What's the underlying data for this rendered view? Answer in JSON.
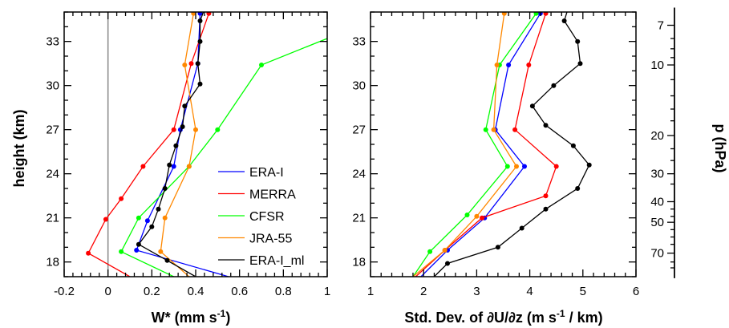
{
  "chart_data": [
    {
      "type": "line",
      "panel": "left",
      "xlabel": "W* (mm s",
      "xlabel_sup": "-1",
      "xlabel_end": ")",
      "ylabel": "height (km)",
      "xlim": [
        -0.2,
        1.0
      ],
      "ylim": [
        17,
        35
      ],
      "x_ticks": [
        "-0.2",
        "0",
        "0.2",
        "0.4",
        "0.6",
        "0.8",
        "1"
      ],
      "x_tick_values": [
        -0.2,
        0,
        0.2,
        0.4,
        0.6,
        0.8,
        1.0
      ],
      "y_ticks": [
        "18",
        "21",
        "24",
        "27",
        "30",
        "33"
      ],
      "y_tick_values": [
        18,
        21,
        24,
        27,
        30,
        33
      ],
      "zero_line": true,
      "legend": {
        "placement": "lower-right",
        "entries": [
          "ERA-I",
          "MERRA",
          "CFSR",
          "JRA-55",
          "ERA-I_ml"
        ]
      },
      "series": [
        {
          "name": "ERA-I",
          "color": "#0000ff",
          "y": [
            17,
            18.8,
            20.8,
            24.5,
            27,
            31.5,
            34.9,
            36
          ],
          "x": [
            0.55,
            0.13,
            0.18,
            0.3,
            0.33,
            0.41,
            0.42,
            0.44
          ],
          "markers": [
            false,
            true,
            true,
            true,
            true,
            true,
            true,
            false
          ]
        },
        {
          "name": "MERRA",
          "color": "#ff0000",
          "y": [
            17,
            18.6,
            20.9,
            22.3,
            24.5,
            27,
            31.5,
            34.9,
            36
          ],
          "x": [
            0.1,
            -0.09,
            -0.01,
            0.06,
            0.16,
            0.3,
            0.38,
            0.46,
            0.56
          ],
          "markers": [
            false,
            true,
            true,
            true,
            true,
            true,
            true,
            true,
            false
          ]
        },
        {
          "name": "CFSR",
          "color": "#00ff00",
          "y": [
            17,
            18.7,
            21,
            24.5,
            27,
            31.4,
            33.2
          ],
          "x": [
            0.3,
            0.06,
            0.14,
            0.37,
            0.5,
            0.7,
            1.0
          ],
          "markers": [
            false,
            true,
            true,
            true,
            true,
            true,
            false
          ]
        },
        {
          "name": "JRA-55",
          "color": "#ff8800",
          "y": [
            17,
            18.7,
            21.0,
            24.5,
            27,
            31.4,
            34.9,
            36
          ],
          "x": [
            0.37,
            0.24,
            0.26,
            0.37,
            0.4,
            0.35,
            0.39,
            0.42
          ],
          "markers": [
            false,
            true,
            true,
            true,
            true,
            true,
            true,
            false
          ]
        },
        {
          "name": "ERA-I_ml",
          "color": "#000000",
          "y": [
            17,
            18.1,
            19.2,
            20.4,
            21.6,
            23.0,
            24.6,
            25.9,
            27.2,
            28.6,
            30.1,
            31.5,
            33.0,
            34.4,
            35.6
          ],
          "x": [
            0.4,
            0.27,
            0.14,
            0.2,
            0.23,
            0.26,
            0.28,
            0.31,
            0.34,
            0.35,
            0.42,
            0.41,
            0.42,
            0.42,
            0.45
          ],
          "markers": [
            false,
            true,
            true,
            true,
            true,
            true,
            true,
            true,
            true,
            true,
            true,
            true,
            true,
            true,
            true
          ]
        }
      ]
    },
    {
      "type": "line",
      "panel": "right",
      "xlabel": "Std. Dev. of ∂U/∂z (m s",
      "xlabel_sup": "-1",
      "xlabel_end": " / km)",
      "xlim": [
        1,
        6
      ],
      "ylim": [
        17,
        35
      ],
      "x_ticks": [
        "1",
        "2",
        "3",
        "4",
        "5",
        "6"
      ],
      "x_tick_values": [
        1,
        2,
        3,
        4,
        5,
        6
      ],
      "y_ticks": [
        "18",
        "21",
        "24",
        "27",
        "30",
        "33"
      ],
      "y_tick_values": [
        18,
        21,
        24,
        27,
        30,
        33
      ],
      "pressure_axis": {
        "label": "p (hPa)",
        "ticks": [
          "7",
          "10",
          "20",
          "30",
          "40",
          "50",
          "70"
        ],
        "heights_km": [
          34.1,
          31.4,
          26.6,
          24.0,
          22.1,
          20.7,
          18.6
        ],
        "minor_heights_km": [
          33.2,
          32.5,
          31.9,
          30.4,
          29.3,
          28.4,
          27.6,
          25.7,
          24.9,
          23.3,
          21.6,
          21.1,
          20.2,
          19.7,
          19.2,
          18.0,
          17.6
        ]
      },
      "series": [
        {
          "name": "ERA-I",
          "color": "#0000ff",
          "y": [
            17,
            18.8,
            21.0,
            24.5,
            27,
            31.4,
            34.9,
            36
          ],
          "x": [
            1.95,
            2.45,
            3.15,
            3.9,
            3.35,
            3.6,
            4.2,
            4.25
          ],
          "markers": [
            false,
            true,
            true,
            true,
            true,
            true,
            true,
            false
          ]
        },
        {
          "name": "MERRA",
          "color": "#ff0000",
          "y": [
            17,
            18.8,
            21.0,
            22.5,
            24.5,
            27,
            31.4,
            34.9,
            36
          ],
          "x": [
            1.85,
            2.4,
            3.1,
            4.3,
            4.5,
            3.72,
            3.98,
            4.3,
            4.33
          ],
          "markers": [
            false,
            true,
            true,
            true,
            true,
            true,
            true,
            true,
            false
          ]
        },
        {
          "name": "CFSR",
          "color": "#00ff00",
          "y": [
            17,
            18.7,
            21.2,
            24.5,
            27,
            31.4,
            34.9,
            36
          ],
          "x": [
            1.8,
            2.12,
            2.82,
            3.58,
            3.17,
            3.43,
            4.12,
            3.95
          ],
          "markers": [
            false,
            true,
            true,
            true,
            true,
            true,
            true,
            false
          ]
        },
        {
          "name": "JRA-55",
          "color": "#ff8800",
          "y": [
            17,
            18.8,
            21.1,
            24.5,
            27,
            31.4,
            34.9,
            36
          ],
          "x": [
            1.8,
            2.4,
            3.0,
            3.75,
            3.32,
            3.38,
            3.52,
            3.52
          ],
          "markers": [
            false,
            true,
            true,
            true,
            true,
            true,
            true,
            false
          ]
        },
        {
          "name": "ERA-I_ml",
          "color": "#000000",
          "y": [
            17,
            17.9,
            19.0,
            20.3,
            21.6,
            23.0,
            24.6,
            25.9,
            27.3,
            28.6,
            30.0,
            31.5,
            33.0,
            34.4,
            35.6
          ],
          "x": [
            2.2,
            2.45,
            3.4,
            3.85,
            4.3,
            4.9,
            5.12,
            4.82,
            4.3,
            4.05,
            4.45,
            4.95,
            4.9,
            4.65,
            4.75
          ],
          "markers": [
            false,
            true,
            true,
            true,
            true,
            true,
            true,
            true,
            true,
            true,
            true,
            true,
            true,
            true,
            true
          ]
        }
      ]
    }
  ]
}
